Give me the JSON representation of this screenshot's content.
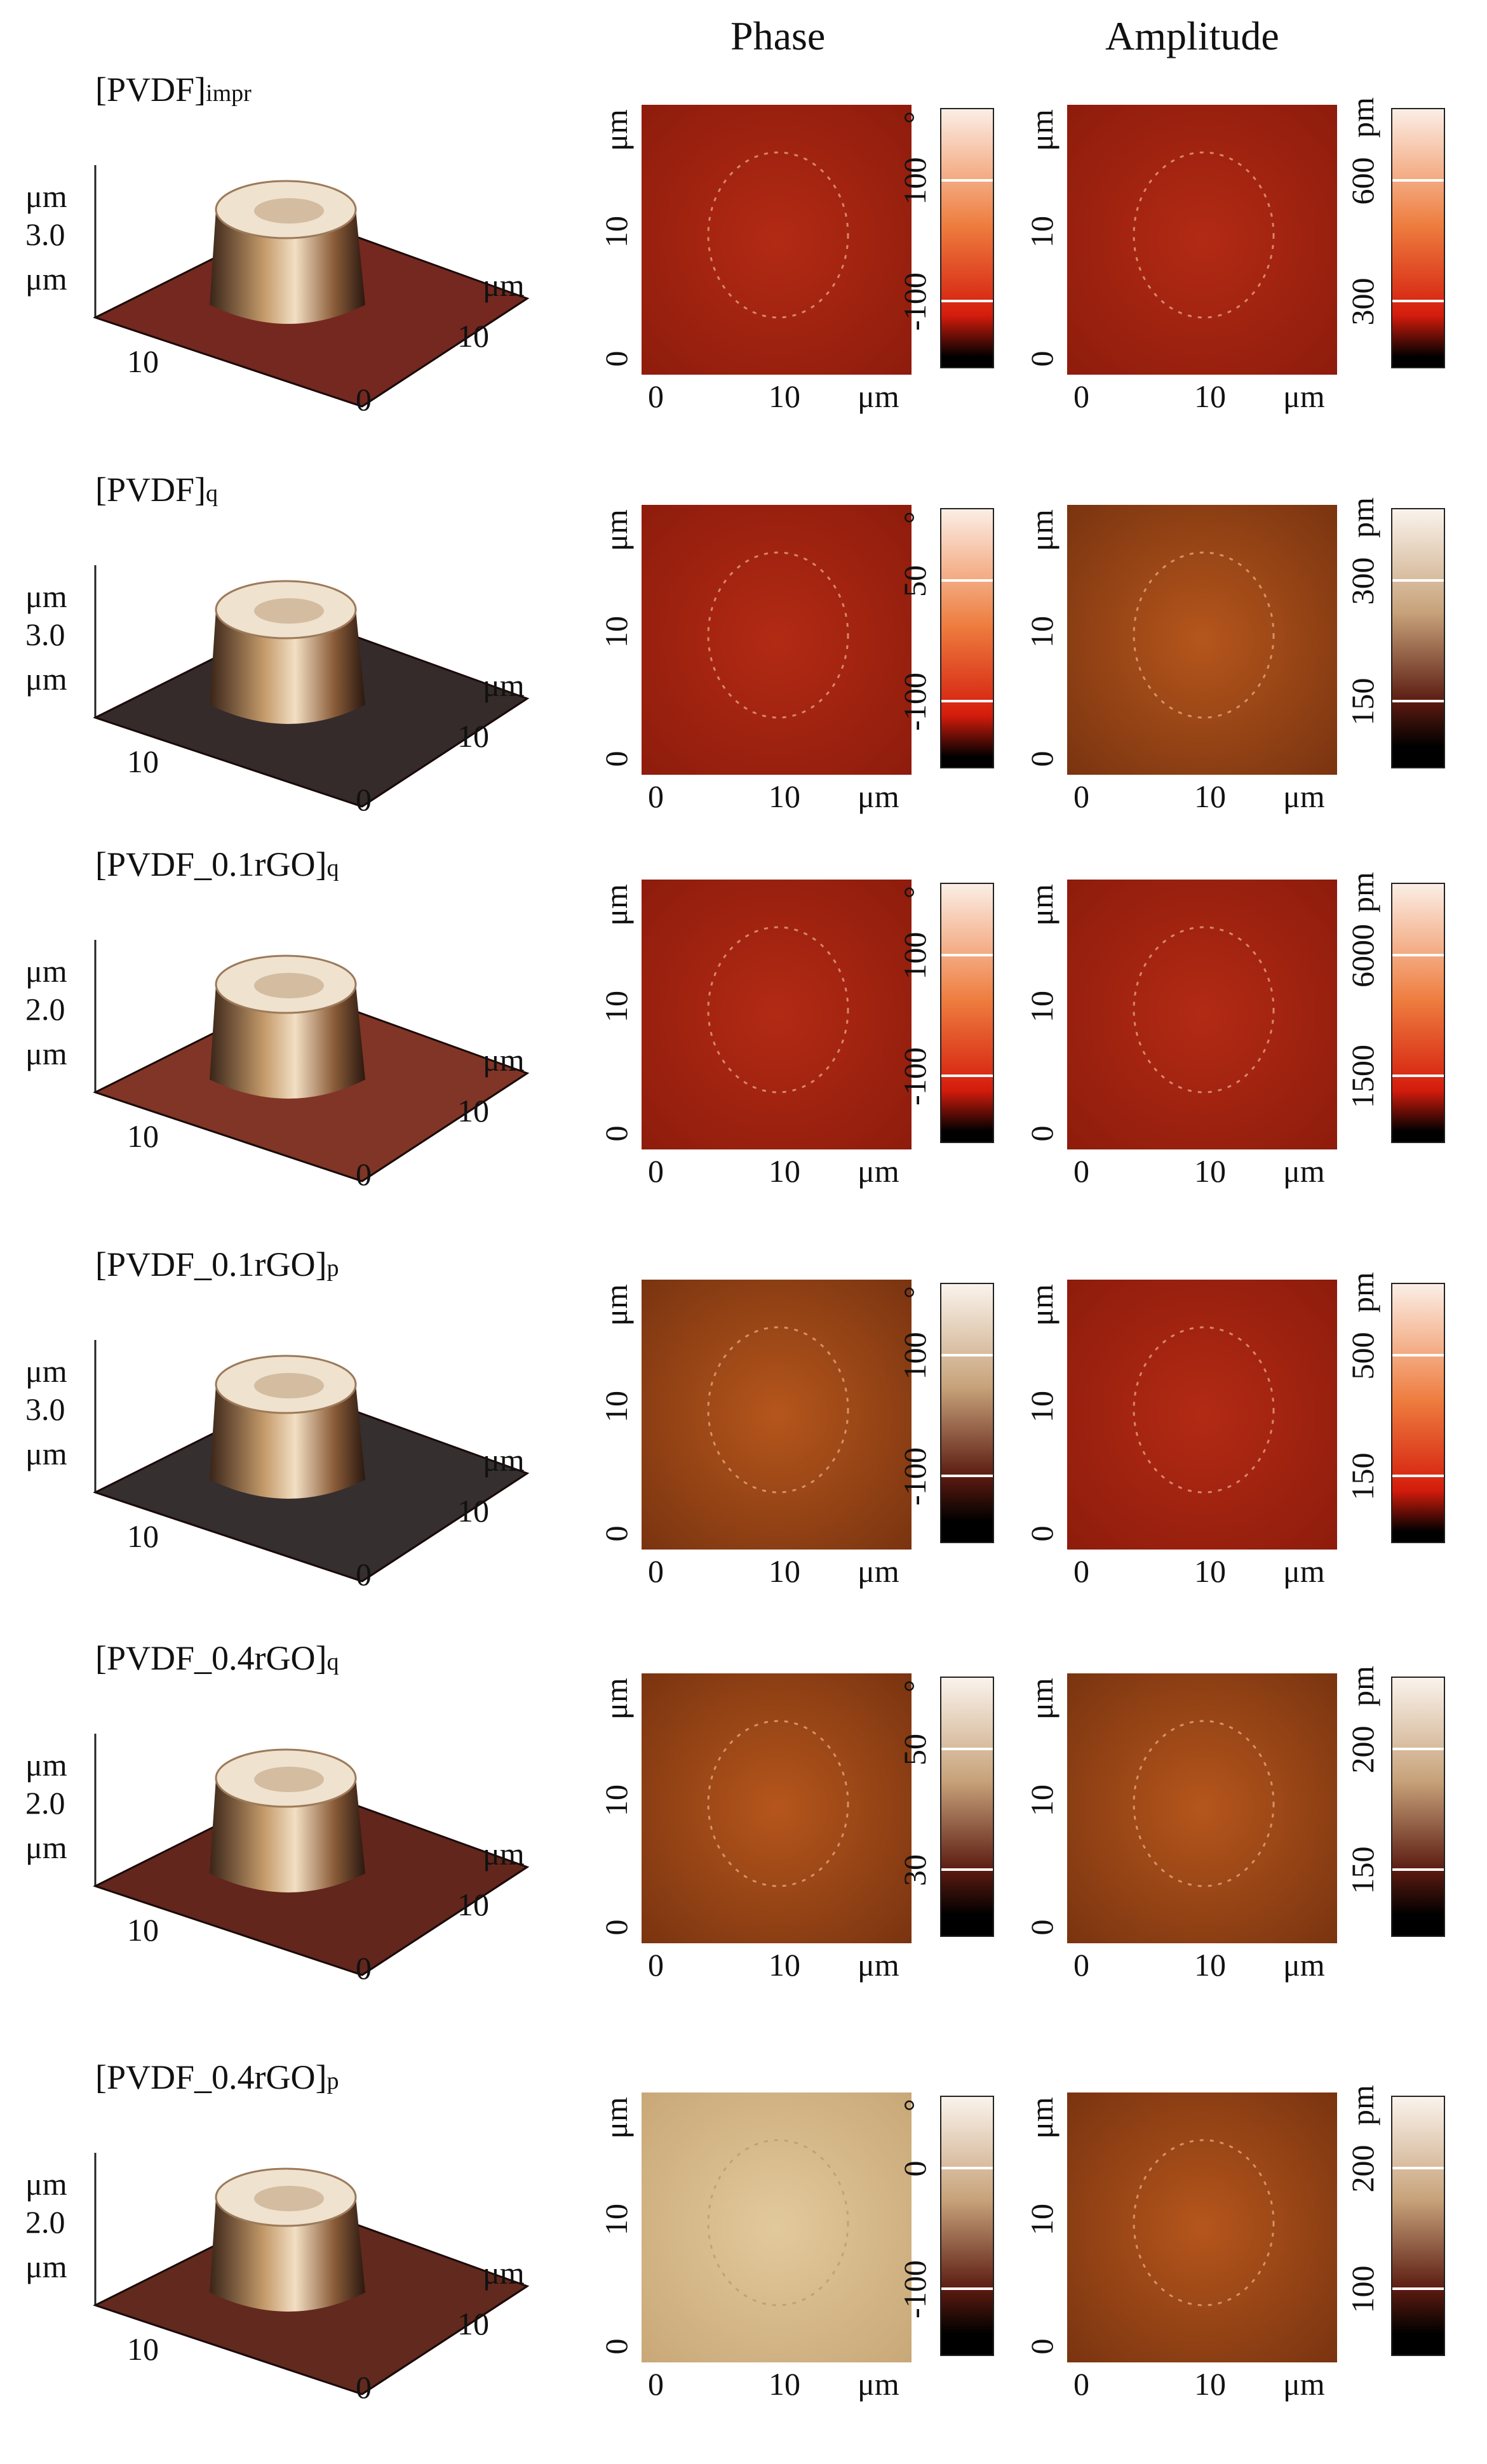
{
  "headers": {
    "phase": "Phase",
    "amplitude": "Amplitude"
  },
  "colors": {
    "red_map": "#b22a14",
    "red_map_bright": "#d13a1a",
    "brown_map": "#b5561c",
    "beige_map": "#e2c99c",
    "cbar_white": "#fbeee6",
    "cbar_orange": "#ee7d3f",
    "cbar_red": "#d41c0c",
    "cbar_tan": "#c7a27a",
    "cbar_dark": "#2a0a05"
  },
  "rows": [
    {
      "title": "[PVDF]",
      "sub": "impr",
      "surface": {
        "unit_top": "μm",
        "height": "3.0",
        "unit_bottom": "μm",
        "x_tick": "10",
        "zero": "0",
        "y_tick": "10",
        "y_unit": "μm",
        "color": "#6e1c14"
      },
      "phase": {
        "y_unit": "μm",
        "y_mid": "10",
        "y_zero": "0",
        "x_zero": "0",
        "x_mid": "10",
        "x_unit": "μm",
        "deg": "°",
        "cb_top": "100",
        "cb_bottom": "-100",
        "map": "red"
      },
      "amplitude": {
        "y_unit": "μm",
        "y_mid": "10",
        "y_zero": "0",
        "x_zero": "0",
        "x_mid": "10",
        "x_unit": "μm",
        "unit": "pm",
        "cb_top": "600",
        "cb_bottom": "300",
        "map": "red"
      }
    },
    {
      "title": "[PVDF]",
      "sub": "q",
      "surface": {
        "unit_top": "μm",
        "height": "3.0",
        "unit_bottom": "μm",
        "x_tick": "10",
        "zero": "0",
        "y_tick": "10",
        "y_unit": "μm",
        "color": "#2a2020"
      },
      "phase": {
        "y_unit": "μm",
        "y_mid": "10",
        "y_zero": "0",
        "x_zero": "0",
        "x_mid": "10",
        "x_unit": "μm",
        "deg": "°",
        "cb_top": "50",
        "cb_bottom": "-100",
        "map": "red"
      },
      "amplitude": {
        "y_unit": "μm",
        "y_mid": "10",
        "y_zero": "0",
        "x_zero": "0",
        "x_mid": "10",
        "x_unit": "μm",
        "unit": "pm",
        "cb_top": "300",
        "cb_bottom": "150",
        "map": "brown"
      }
    },
    {
      "title": "[PVDF_0.1rGO]",
      "sub": "q",
      "surface": {
        "unit_top": "μm",
        "height": "2.0",
        "unit_bottom": "μm",
        "x_tick": "10",
        "zero": "0",
        "y_tick": "10",
        "y_unit": "μm",
        "color": "#7a2a1a"
      },
      "phase": {
        "y_unit": "μm",
        "y_mid": "10",
        "y_zero": "0",
        "x_zero": "0",
        "x_mid": "10",
        "x_unit": "μm",
        "deg": "°",
        "cb_top": "100",
        "cb_bottom": "-100",
        "map": "red"
      },
      "amplitude": {
        "y_unit": "μm",
        "y_mid": "10",
        "y_zero": "0",
        "x_zero": "0",
        "x_mid": "10",
        "x_unit": "μm",
        "unit": "pm",
        "cb_top": "6000",
        "cb_bottom": "1500",
        "map": "red"
      }
    },
    {
      "title": "[PVDF_0.1rGO]",
      "sub": "p",
      "surface": {
        "unit_top": "μm",
        "height": "3.0",
        "unit_bottom": "μm",
        "x_tick": "10",
        "zero": "0",
        "y_tick": "10",
        "y_unit": "μm",
        "color": "#2a2424"
      },
      "phase": {
        "y_unit": "μm",
        "y_mid": "10",
        "y_zero": "0",
        "x_zero": "0",
        "x_mid": "10",
        "x_unit": "μm",
        "deg": "°",
        "cb_top": "100",
        "cb_bottom": "-100",
        "map": "brown"
      },
      "amplitude": {
        "y_unit": "μm",
        "y_mid": "10",
        "y_zero": "0",
        "x_zero": "0",
        "x_mid": "10",
        "x_unit": "μm",
        "unit": "pm",
        "cb_top": "500",
        "cb_bottom": "150",
        "map": "red"
      }
    },
    {
      "title": "[PVDF_0.4rGO]",
      "sub": "q",
      "surface": {
        "unit_top": "μm",
        "height": "2.0",
        "unit_bottom": "μm",
        "x_tick": "10",
        "zero": "0",
        "y_tick": "10",
        "y_unit": "μm",
        "color": "#5a1a10"
      },
      "phase": {
        "y_unit": "μm",
        "y_mid": "10",
        "y_zero": "0",
        "x_zero": "0",
        "x_mid": "10",
        "x_unit": "μm",
        "deg": "°",
        "cb_top": "50",
        "cb_bottom": "30",
        "map": "brown"
      },
      "amplitude": {
        "y_unit": "μm",
        "y_mid": "10",
        "y_zero": "0",
        "x_zero": "0",
        "x_mid": "10",
        "x_unit": "μm",
        "unit": "pm",
        "cb_top": "200",
        "cb_bottom": "150",
        "map": "brown"
      }
    },
    {
      "title": "[PVDF_0.4rGO]",
      "sub": "p",
      "surface": {
        "unit_top": "μm",
        "height": "2.0",
        "unit_bottom": "μm",
        "x_tick": "10",
        "zero": "0",
        "y_tick": "10",
        "y_unit": "μm",
        "color": "#5a1e12"
      },
      "phase": {
        "y_unit": "μm",
        "y_mid": "10",
        "y_zero": "0",
        "x_zero": "0",
        "x_mid": "10",
        "x_unit": "μm",
        "deg": "°",
        "cb_top": "0",
        "cb_bottom": "-100",
        "map": "beige"
      },
      "amplitude": {
        "y_unit": "μm",
        "y_mid": "10",
        "y_zero": "0",
        "x_zero": "0",
        "x_mid": "10",
        "x_unit": "μm",
        "unit": "pm",
        "cb_top": "200",
        "cb_bottom": "100",
        "map": "brown"
      }
    }
  ]
}
